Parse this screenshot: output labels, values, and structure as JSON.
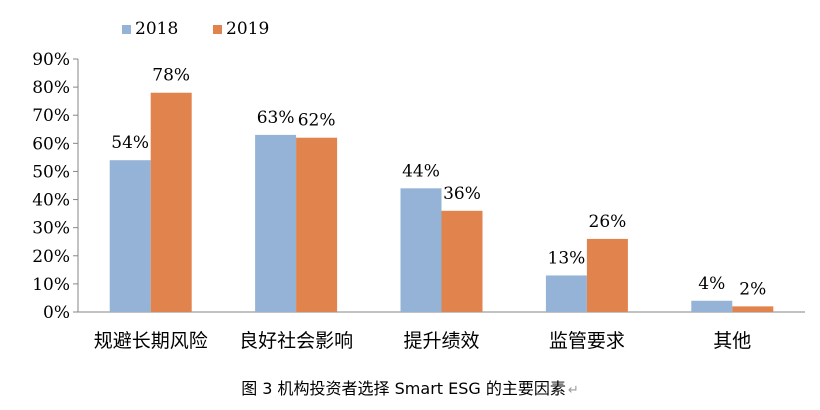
{
  "chart_data": {
    "type": "bar",
    "categories": [
      "规避长期风险",
      "良好社会影响",
      "提升绩效",
      "监管要求",
      "其他"
    ],
    "series": [
      {
        "name": "2018",
        "values": [
          54,
          63,
          44,
          13,
          4
        ],
        "color": "#95B3D7"
      },
      {
        "name": "2019",
        "values": [
          78,
          62,
          36,
          26,
          2
        ],
        "color": "#E0834D"
      }
    ],
    "value_suffix": "%",
    "ylim": [
      0,
      90
    ],
    "yticks": [
      0,
      10,
      20,
      30,
      40,
      50,
      60,
      70,
      80,
      90
    ],
    "grid": false,
    "legend": "top-left"
  },
  "caption": "图 3 机构投资者选择 Smart ESG 的主要因素",
  "caption_mark": "↵"
}
